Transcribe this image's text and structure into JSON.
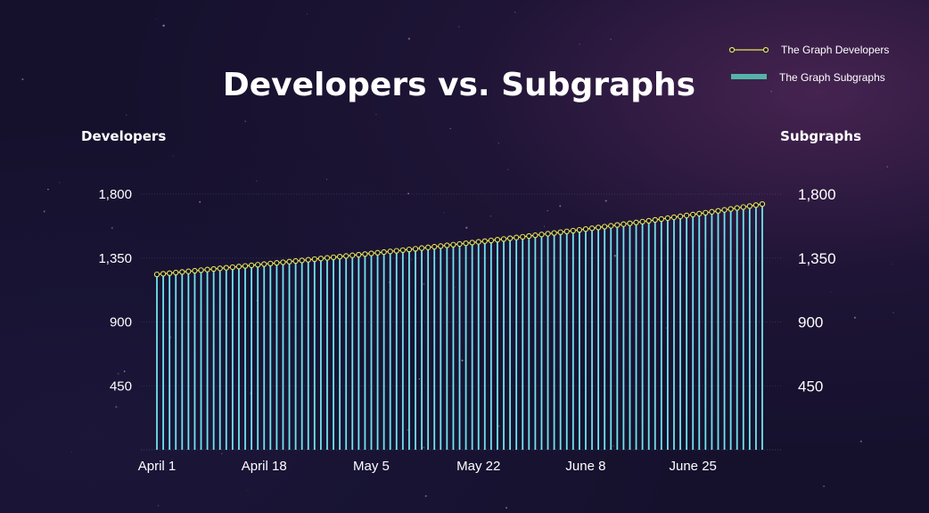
{
  "chart_data": {
    "type": "bar+line",
    "title": "Developers vs. Subgraphs",
    "ylabel_left": "Developers",
    "ylabel_right": "Subgraphs",
    "y_ticks": [
      450,
      900,
      1350,
      1800
    ],
    "y_tick_labels": [
      "450",
      "900",
      "1,350",
      "1,800"
    ],
    "ylim": [
      0,
      1800
    ],
    "x_start_label": "April 1",
    "x_tick_labels": [
      "April 1",
      "April 18",
      "May 5",
      "May 22",
      "June 8",
      "June 25"
    ],
    "x_tick_index": [
      0,
      17,
      34,
      51,
      68,
      85
    ],
    "x_count": 97,
    "grid": true,
    "legend_position": "top-right",
    "series": [
      {
        "name": "The Graph Developers",
        "kind": "line",
        "color": "#e6e65a",
        "start": 1235,
        "end": 1730
      },
      {
        "name": "The Graph Subgraphs",
        "kind": "bar",
        "color": "#6fe3ee",
        "start": 1230,
        "end": 1730
      }
    ]
  },
  "legend": {
    "line_label": "The Graph Developers",
    "bar_label": "The Graph Subgraphs",
    "bar_swatch_color": "#55b3a8"
  }
}
